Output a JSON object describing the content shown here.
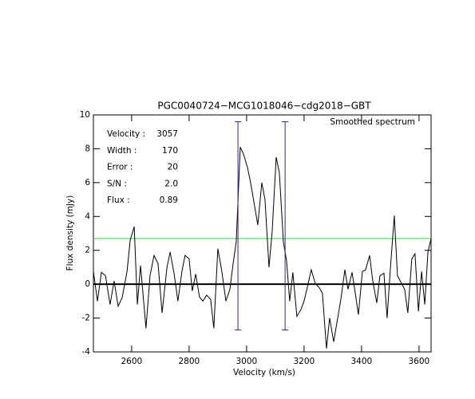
{
  "chart_data": {
    "type": "line",
    "title": "PGC0040724−MCG1018046−cdg2018−GBT",
    "x_label": "Velocity (km/s)",
    "y_label": "Flux density (mJy)",
    "xlim": [
      2467,
      3642
    ],
    "ylim": [
      -4,
      10
    ],
    "xticks": [
      2600,
      2800,
      3000,
      3200,
      3400,
      3600
    ],
    "yticks": [
      -4,
      -2,
      0,
      2,
      4,
      6,
      8,
      10
    ],
    "series": [
      {
        "name": "Smoothed spectrum",
        "color": "#000000",
        "x": [
          2467,
          2481,
          2495,
          2509,
          2525,
          2539,
          2553,
          2567,
          2584,
          2595,
          2609,
          2620,
          2631,
          2650,
          2664,
          2678,
          2692,
          2706,
          2723,
          2734,
          2748,
          2761,
          2775,
          2786,
          2800,
          2811,
          2823,
          2836,
          2848,
          2861,
          2875,
          2886,
          2900,
          2914,
          2928,
          2942,
          2953,
          2964,
          2978,
          2989,
          3003,
          3014,
          3028,
          3039,
          3053,
          3064,
          3078,
          3089,
          3103,
          3114,
          3128,
          3139,
          3150,
          3161,
          3175,
          3189,
          3200,
          3211,
          3225,
          3239,
          3253,
          3264,
          3278,
          3289,
          3303,
          3314,
          3328,
          3342,
          3353,
          3367,
          3378,
          3389,
          3403,
          3414,
          3428,
          3439,
          3453,
          3464,
          3478,
          3489,
          3500,
          3514,
          3525,
          3539,
          3550,
          3561,
          3575,
          3586,
          3598,
          3609,
          3620,
          3631,
          3642
        ],
        "values": [
          0.75,
          -1.0,
          0.7,
          0.5,
          -1.2,
          0.2,
          -1.3,
          -0.8,
          0.75,
          2.6,
          3.4,
          -1.2,
          1.1,
          -2.6,
          0.5,
          1.7,
          1.2,
          -1.7,
          1.0,
          1.9,
          0.6,
          -1.0,
          0.75,
          1.7,
          1.5,
          -0.4,
          0.6,
          -0.75,
          -1.0,
          -0.65,
          -0.9,
          -2.6,
          2.1,
          0.75,
          -1.0,
          -0.3,
          1.2,
          2.5,
          8.1,
          7.7,
          6.9,
          6.0,
          4.6,
          3.5,
          6.0,
          5.0,
          1.0,
          3.1,
          7.5,
          6.6,
          2.5,
          1.4,
          -1.0,
          0.7,
          -1.9,
          -1.5,
          -1.0,
          -0.2,
          0.85,
          0.05,
          -0.2,
          -0.55,
          -3.8,
          -2.0,
          -3.4,
          -2.3,
          -0.9,
          0.85,
          -0.3,
          0.7,
          -0.5,
          -1.8,
          0.75,
          0.85,
          1.7,
          0.2,
          -1.1,
          0.5,
          0.65,
          -2.0,
          0.85,
          4.05,
          0.5,
          0.05,
          -0.3,
          -1.7,
          1.5,
          1.8,
          -1.6,
          0.75,
          -1.2,
          1.9,
          2.7
        ]
      }
    ],
    "window": {
      "x": [
        2970,
        3134
      ],
      "ymin": -2.7,
      "ymax": 9.6,
      "color": "#3a1eb0"
    },
    "threshold": {
      "value": 2.7,
      "color": "#33dd33"
    },
    "zero_line": 0,
    "stats_color": "#3a1eb0",
    "stats": [
      {
        "label": "Velocity :",
        "value": 3057
      },
      {
        "label": "Width :",
        "value": 170
      },
      {
        "label": "Error :",
        "value": 20
      },
      {
        "label": "S/N :",
        "value": 2,
        "value_label": "2.0"
      },
      {
        "label": "Flux :",
        "value": 0.89
      }
    ]
  }
}
